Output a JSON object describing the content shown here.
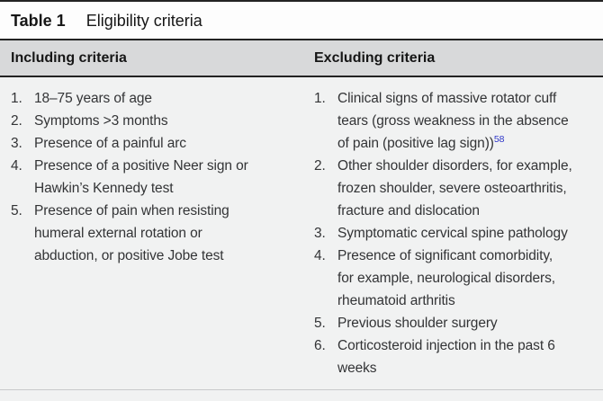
{
  "table": {
    "title_label": "Table 1",
    "title_caption": "Eligibility criteria",
    "columns": [
      {
        "header": "Including criteria",
        "items": [
          {
            "num": "1.",
            "lines": [
              "18–75 years of age"
            ]
          },
          {
            "num": "2.",
            "lines": [
              "Symptoms >3 months"
            ]
          },
          {
            "num": "3.",
            "lines": [
              "Presence of a painful arc"
            ]
          },
          {
            "num": "4.",
            "lines": [
              "Presence of a positive Neer sign or",
              "Hawkin’s Kennedy test"
            ]
          },
          {
            "num": "5.",
            "lines": [
              "Presence of pain when resisting",
              "humeral external rotation or",
              "abduction, or positive Jobe test"
            ]
          }
        ]
      },
      {
        "header": "Excluding criteria",
        "items": [
          {
            "num": "1.",
            "lines": [
              "Clinical signs of massive rotator cuff",
              "tears (gross weakness in the absence",
              "of pain (positive lag sign))"
            ],
            "ref": "58"
          },
          {
            "num": "2.",
            "lines": [
              "Other shoulder disorders, for example,",
              "frozen shoulder, severe osteoarthritis,",
              "fracture and dislocation"
            ]
          },
          {
            "num": "3.",
            "lines": [
              "Symptomatic cervical spine pathology"
            ]
          },
          {
            "num": "4.",
            "lines": [
              "Presence of significant comorbidity,",
              "for example, neurological disorders,",
              "rheumatoid arthritis"
            ]
          },
          {
            "num": "5.",
            "lines": [
              "Previous shoulder surgery"
            ]
          },
          {
            "num": "6.",
            "lines": [
              "Corticosteroid injection in the past 6",
              "weeks"
            ]
          }
        ]
      }
    ]
  },
  "colors": {
    "header_bg": "#d8d9da",
    "body_bg": "#f1f2f2",
    "title_bg": "#fdfdfd",
    "rule_dark": "#232323",
    "hairline": "#c9cacb",
    "text": "#333436",
    "reference_blue": "#2d35c8"
  }
}
